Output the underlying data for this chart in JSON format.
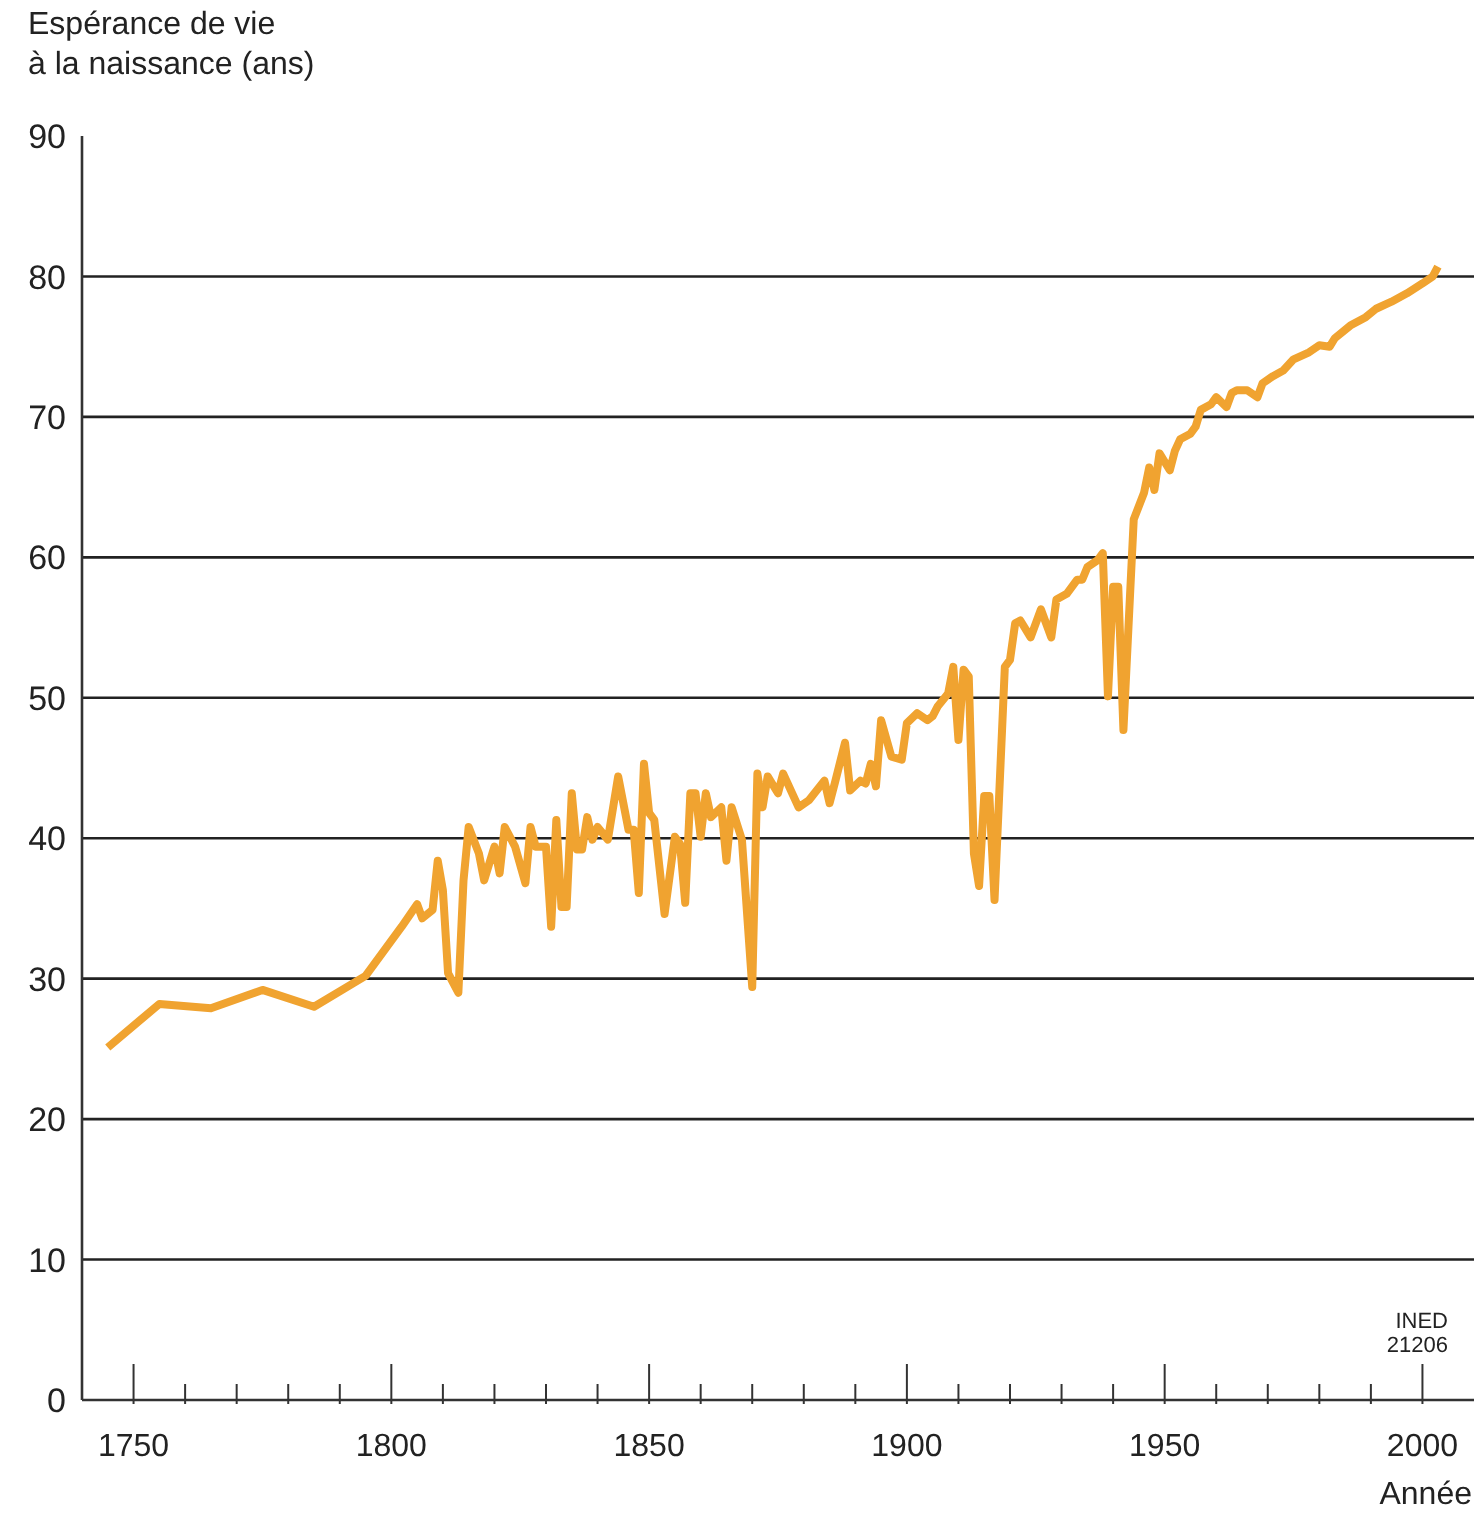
{
  "chart_data": {
    "type": "line",
    "ylabel": "Espérance de vie\nà la naissance (ans)",
    "xlabel": "Année",
    "annotations": [
      "INED 21206"
    ],
    "x": [
      1745,
      1755,
      1765,
      1775,
      1785,
      1795,
      1802,
      1805,
      1806,
      1808,
      1809,
      1810,
      1811,
      1813,
      1814,
      1815,
      1817,
      1818,
      1820,
      1821,
      1822,
      1824,
      1826,
      1827,
      1828,
      1830,
      1831,
      1832,
      1833,
      1834,
      1835,
      1836,
      1837,
      1838,
      1839,
      1840,
      1842,
      1844,
      1846,
      1847,
      1848,
      1849,
      1850,
      1851,
      1853,
      1855,
      1856,
      1857,
      1858,
      1859,
      1860,
      1861,
      1862,
      1864,
      1865,
      1866,
      1868,
      1870,
      1871,
      1872,
      1873,
      1875,
      1876,
      1879,
      1881,
      1884,
      1885,
      1886,
      1888,
      1889,
      1891,
      1892,
      1893,
      1894,
      1895,
      1897,
      1899,
      1900,
      1902,
      1904,
      1905,
      1906,
      1908,
      1909,
      1910,
      1911,
      1912,
      1913,
      1914,
      1915,
      1916,
      1917,
      1919,
      1920,
      1921,
      1922,
      1924,
      1926,
      1928,
      1929,
      1931,
      1933,
      1934,
      1935,
      1937,
      1938,
      1939,
      1940,
      1941,
      1942,
      1944,
      1946,
      1947,
      1948,
      1949,
      1951,
      1952,
      1953,
      1955,
      1956,
      1957,
      1959,
      1960,
      1962,
      1963,
      1964,
      1966,
      1968,
      1969,
      1971,
      1973,
      1975,
      1978,
      1980,
      1982,
      1983,
      1986,
      1989,
      1991,
      1994,
      1997,
      2000,
      2002,
      2003
    ],
    "series": [
      {
        "color": "#f0a330",
        "values": [
          25.1,
          28.2,
          27.9,
          29.2,
          28.0,
          30.2,
          33.7,
          35.3,
          34.3,
          34.9,
          38.4,
          36.3,
          30.4,
          29.0,
          37.0,
          40.8,
          38.9,
          37.0,
          39.4,
          37.5,
          40.8,
          39.4,
          36.8,
          40.8,
          39.4,
          39.4,
          33.7,
          41.3,
          35.1,
          35.1,
          43.2,
          39.2,
          39.2,
          41.5,
          39.9,
          40.8,
          39.9,
          44.4,
          40.6,
          40.6,
          36.1,
          45.3,
          41.8,
          41.3,
          34.6,
          40.1,
          39.6,
          35.4,
          43.2,
          43.2,
          40.1,
          43.2,
          41.5,
          42.2,
          38.4,
          42.2,
          39.9,
          29.4,
          44.6,
          42.2,
          44.4,
          43.2,
          44.6,
          42.2,
          42.7,
          44.1,
          42.5,
          43.9,
          46.8,
          43.4,
          44.1,
          43.9,
          45.3,
          43.7,
          48.4,
          45.8,
          45.6,
          48.2,
          48.9,
          48.4,
          48.7,
          49.4,
          50.3,
          52.2,
          47.0,
          52.0,
          51.5,
          38.9,
          36.6,
          43.0,
          43.0,
          35.6,
          52.2,
          52.7,
          55.3,
          55.5,
          54.3,
          56.3,
          54.3,
          57.0,
          57.4,
          58.4,
          58.4,
          59.3,
          59.8,
          60.3,
          50.1,
          57.9,
          57.9,
          47.7,
          62.7,
          64.6,
          66.4,
          64.8,
          67.4,
          66.2,
          67.6,
          68.4,
          68.8,
          69.3,
          70.5,
          70.9,
          71.4,
          70.7,
          71.7,
          71.9,
          71.9,
          71.4,
          72.4,
          72.9,
          73.3,
          74.1,
          74.6,
          75.1,
          75.0,
          75.6,
          76.5,
          77.1,
          77.7,
          78.2,
          78.8,
          79.5,
          80.0,
          80.7
        ]
      }
    ],
    "xlim": [
      1740,
      2010
    ],
    "xticks": [
      1750,
      {
        "value": 1760,
        "label": null
      },
      {
        "value": 1770,
        "label": null
      },
      {
        "value": 1780,
        "label": null
      },
      {
        "value": 1790,
        "label": null
      },
      1800,
      {
        "value": 1810,
        "label": null
      },
      {
        "value": 1820,
        "label": null
      },
      {
        "value": 1830,
        "label": null
      },
      {
        "value": 1840,
        "label": null
      },
      1850,
      {
        "value": 1860,
        "label": null
      },
      {
        "value": 1870,
        "label": null
      },
      {
        "value": 1880,
        "label": null
      },
      {
        "value": 1890,
        "label": null
      },
      1900,
      {
        "value": 1910,
        "label": null
      },
      {
        "value": 1920,
        "label": null
      },
      {
        "value": 1930,
        "label": null
      },
      {
        "value": 1940,
        "label": null
      },
      1950,
      {
        "value": 1960,
        "label": null
      },
      {
        "value": 1970,
        "label": null
      },
      {
        "value": 1980,
        "label": null
      },
      {
        "value": 1990,
        "label": null
      },
      2000
    ],
    "ylim": [
      0,
      90
    ],
    "yticks": [
      0,
      10,
      20,
      30,
      40,
      50,
      60,
      70,
      80,
      90
    ],
    "grid": "y",
    "marker": "none",
    "line_style": "solid",
    "legend": false
  }
}
